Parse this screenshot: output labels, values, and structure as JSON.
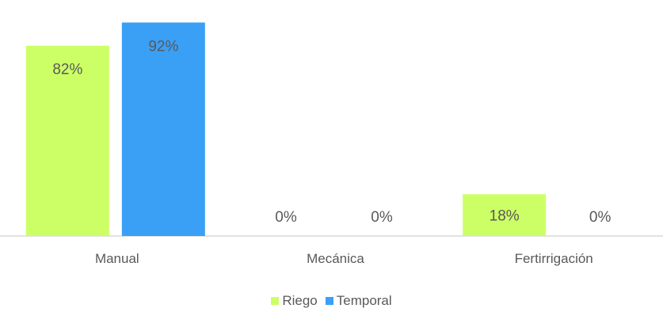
{
  "chart_data": {
    "type": "bar",
    "categories": [
      "Manual",
      "Mecánica",
      "Fertirrigación"
    ],
    "series": [
      {
        "name": "Riego",
        "values": [
          82,
          0,
          18
        ],
        "labels": [
          "82%",
          "0%",
          "18%"
        ],
        "color": "#ccff66"
      },
      {
        "name": "Temporal",
        "values": [
          92,
          0,
          0
        ],
        "labels": [
          "92%",
          "0%",
          "0%"
        ],
        "color": "#3aa0f5"
      }
    ],
    "ylim": [
      0,
      100
    ],
    "grid": false,
    "legend_position": "bottom",
    "axis_color": "#d9d9d9"
  }
}
